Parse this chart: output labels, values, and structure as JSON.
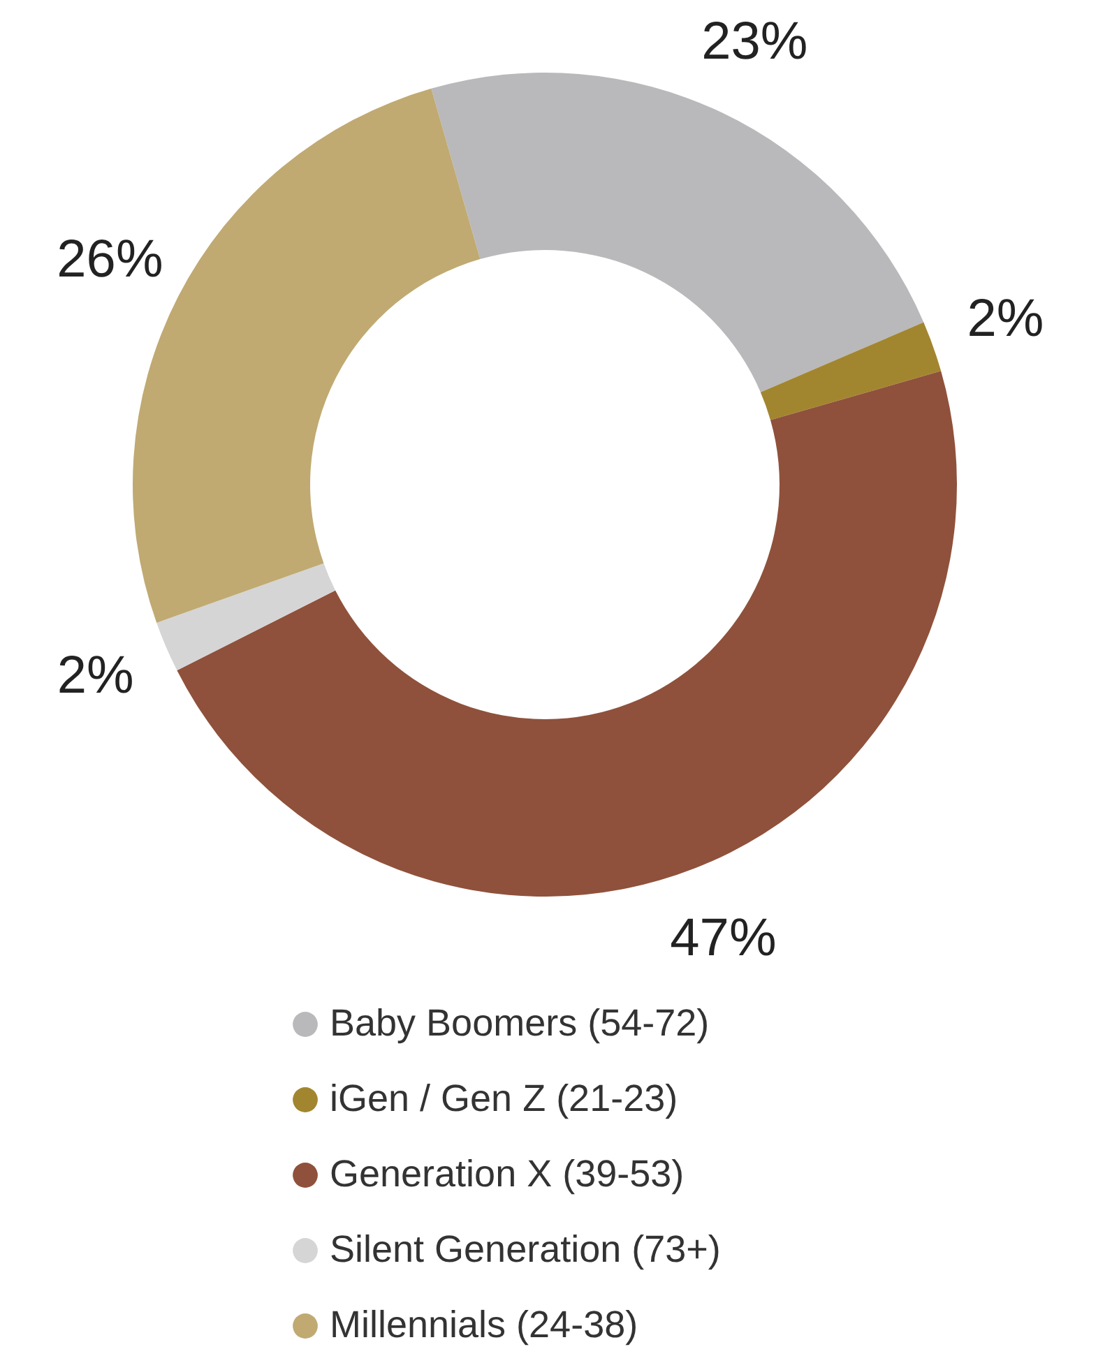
{
  "chart_data": {
    "type": "donut",
    "categories": [
      "Baby Boomers (54-72)",
      "iGen / Gen Z (21-23)",
      "Generation X (39-53)",
      "Silent Generation (73+)",
      "Millennials (24-38)"
    ],
    "values": [
      23,
      2,
      47,
      2,
      26
    ],
    "value_labels": [
      "23%",
      "2%",
      "47%",
      "2%",
      "26%"
    ],
    "colors": [
      "#b9b9bb",
      "#a2862f",
      "#8f513b",
      "#d5d5d5",
      "#c0aa72"
    ],
    "legend": "bottom"
  }
}
